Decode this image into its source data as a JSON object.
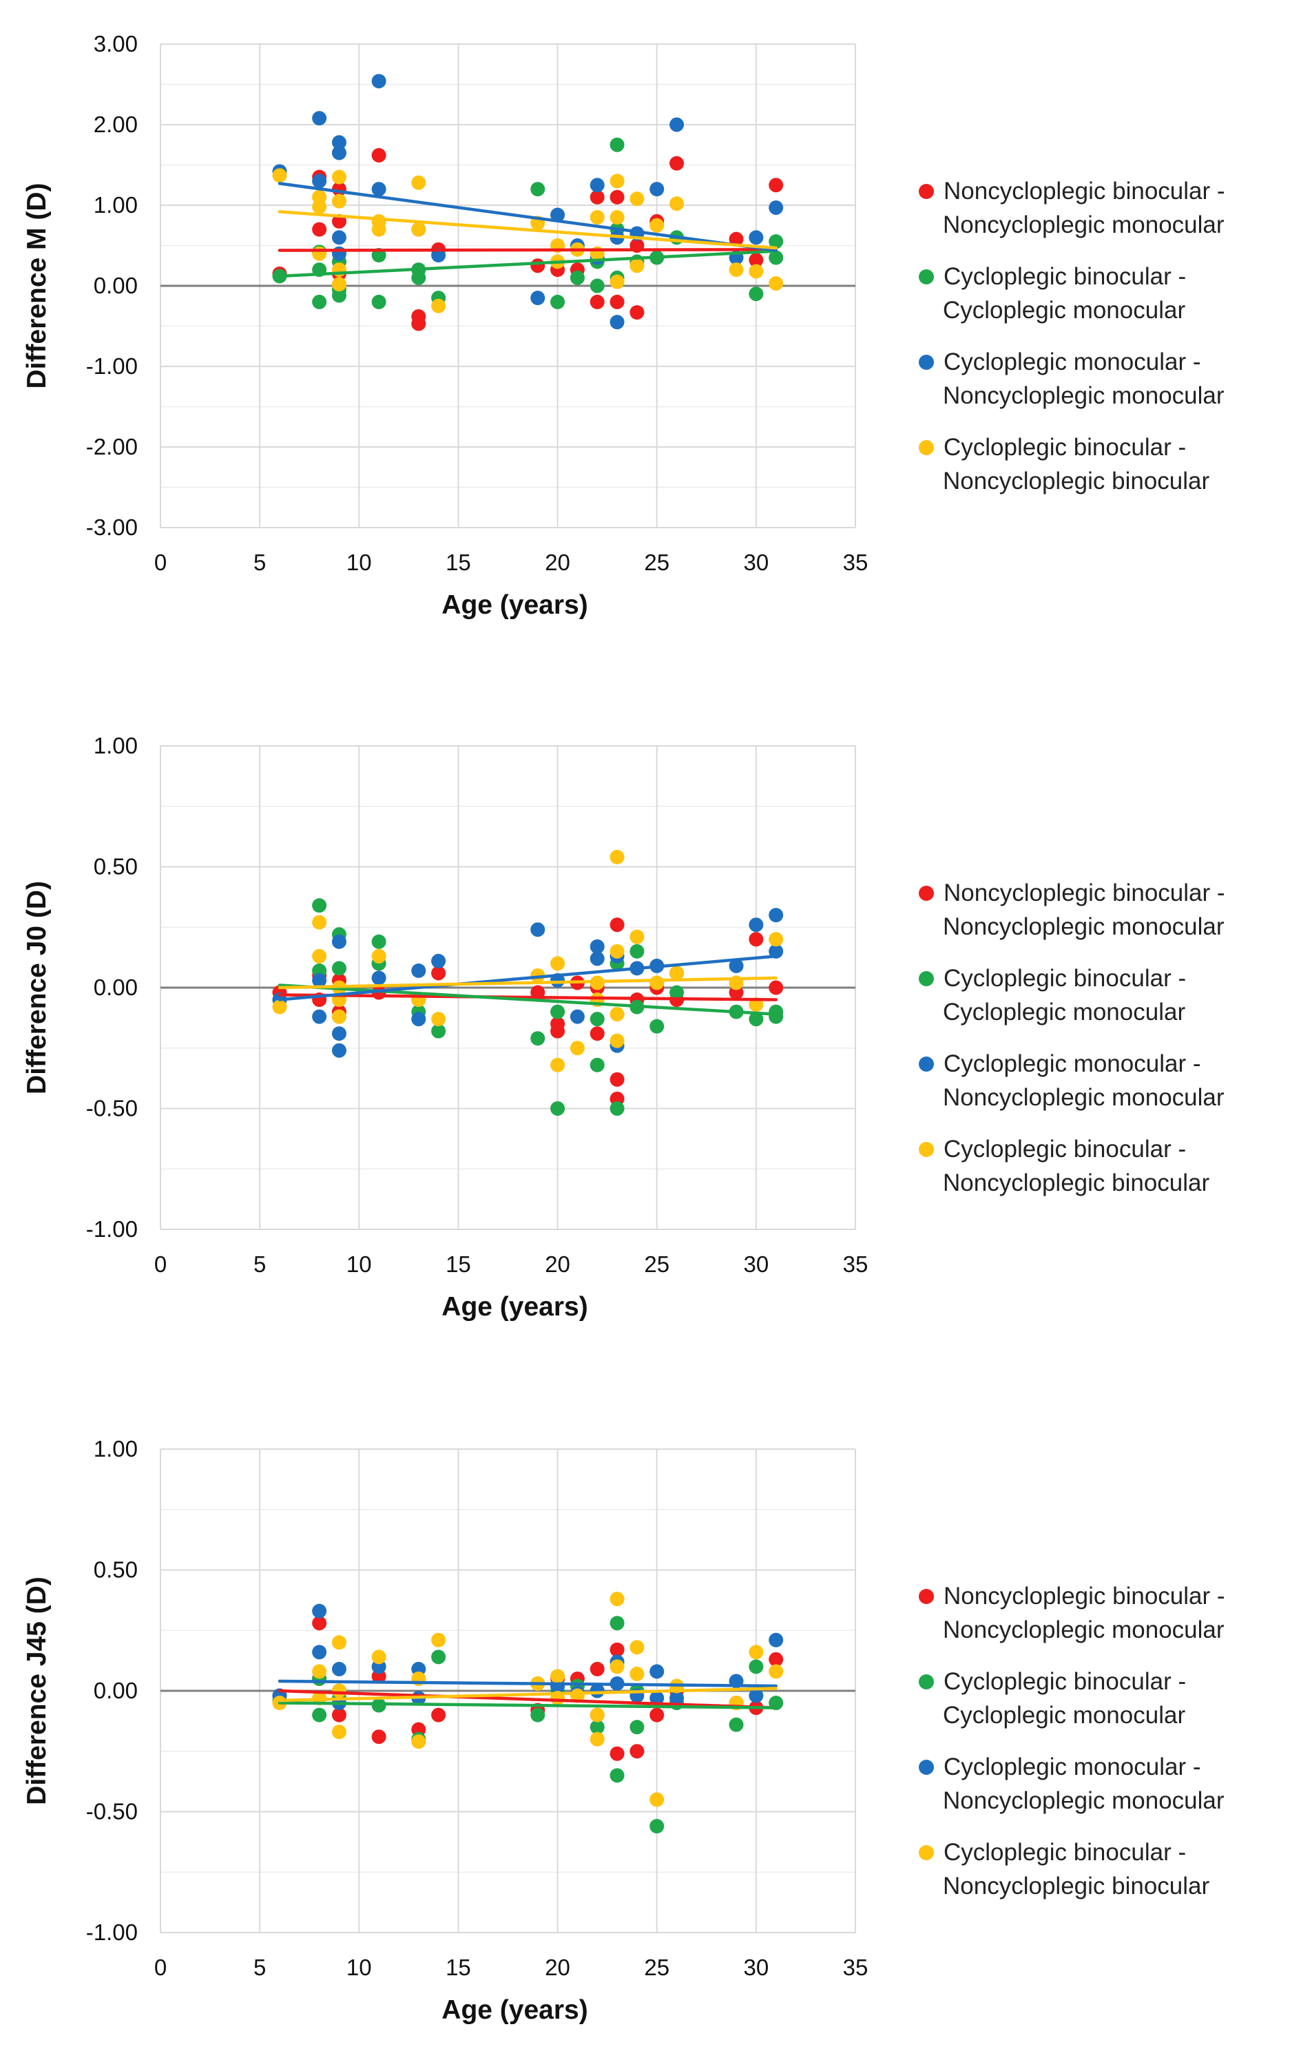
{
  "colors": {
    "series": [
      "#ee1c1c",
      "#1ea84a",
      "#1f6fc0",
      "#ffc20e"
    ],
    "grid": "#d9d9d9",
    "zero_line": "#7f7f7f"
  },
  "legend": [
    [
      "Noncycloplegic binocular -",
      "Noncycloplegic monocular"
    ],
    [
      "Cycloplegic binocular -",
      "Cycloplegic monocular"
    ],
    [
      "Cycloplegic monocular -",
      "Noncycloplegic monocular"
    ],
    [
      "Cycloplegic binocular -",
      "Noncycloplegic binocular"
    ]
  ],
  "chart_data": [
    {
      "type": "scatter",
      "title": "",
      "xlabel": "Age (years)",
      "ylabel": "Difference M (D)",
      "xlim": [
        0,
        35
      ],
      "ylim": [
        -3,
        3
      ],
      "xticks": [
        0,
        5,
        10,
        15,
        20,
        25,
        30,
        35
      ],
      "xtick_labels": [
        "0",
        "5",
        "10",
        "15",
        "20",
        "25",
        "30",
        "35"
      ],
      "yticks": [
        -3,
        -2,
        -1,
        0,
        1,
        2,
        3
      ],
      "ytick_labels": [
        "-3.00",
        "-2.00",
        "-1.00",
        "0.00",
        "1.00",
        "2.00",
        "3.00"
      ],
      "minor_y_step": 0.5,
      "series": [
        {
          "name": "Noncycloplegic binocular - Noncycloplegic monocular",
          "x": [
            6,
            8,
            8,
            9,
            9,
            9,
            9,
            11,
            13,
            13,
            14,
            19,
            20,
            21,
            22,
            22,
            23,
            23,
            24,
            24,
            25,
            26,
            29,
            30,
            31
          ],
          "y": [
            0.15,
            1.35,
            0.7,
            1.2,
            0.8,
            0.3,
            0.15,
            1.62,
            -0.38,
            -0.47,
            0.45,
            0.25,
            0.2,
            0.2,
            1.1,
            -0.2,
            1.1,
            -0.2,
            -0.33,
            0.5,
            0.8,
            1.52,
            0.58,
            0.32,
            1.25
          ],
          "trend": [
            0.44,
            0.45
          ]
        },
        {
          "name": "Cycloplegic binocular - Cycloplegic monocular",
          "x": [
            6,
            8,
            8,
            8,
            9,
            9,
            9,
            11,
            11,
            13,
            13,
            14,
            19,
            20,
            21,
            22,
            22,
            23,
            23,
            23,
            24,
            25,
            26,
            30,
            31,
            31
          ],
          "y": [
            0.12,
            -0.2,
            0.42,
            0.2,
            -0.05,
            -0.12,
            0.3,
            -0.2,
            0.38,
            0.1,
            0.2,
            -0.15,
            1.2,
            -0.2,
            0.1,
            0.0,
            0.3,
            1.75,
            0.7,
            0.1,
            0.3,
            0.35,
            0.6,
            -0.1,
            0.35,
            0.55
          ],
          "trend": [
            0.12,
            0.43
          ]
        },
        {
          "name": "Cycloplegic monocular - Noncycloplegic monocular",
          "x": [
            6,
            8,
            8,
            9,
            9,
            9,
            9,
            11,
            11,
            13,
            14,
            19,
            20,
            21,
            22,
            22,
            23,
            23,
            24,
            25,
            26,
            29,
            30,
            31
          ],
          "y": [
            1.42,
            2.08,
            1.3,
            1.78,
            1.65,
            0.6,
            0.4,
            2.54,
            1.2,
            0.7,
            0.38,
            -0.15,
            0.88,
            0.5,
            1.25,
            0.35,
            0.6,
            -0.45,
            0.65,
            1.2,
            2.0,
            0.35,
            0.6,
            0.97
          ],
          "trend": [
            1.27,
            0.44
          ]
        },
        {
          "name": "Cycloplegic binocular - Noncycloplegic binocular",
          "x": [
            6,
            8,
            8,
            8,
            9,
            9,
            9,
            9,
            11,
            11,
            13,
            13,
            14,
            19,
            20,
            20,
            21,
            22,
            22,
            23,
            23,
            23,
            24,
            24,
            25,
            26,
            29,
            30,
            31
          ],
          "y": [
            1.37,
            1.1,
            0.98,
            0.4,
            1.35,
            1.05,
            0.2,
            0.02,
            0.8,
            0.7,
            1.28,
            0.7,
            -0.25,
            0.78,
            0.5,
            0.3,
            0.45,
            0.85,
            0.4,
            1.3,
            0.85,
            0.05,
            1.08,
            0.25,
            0.75,
            1.02,
            0.2,
            0.18,
            0.03
          ],
          "trend": [
            0.92,
            0.47
          ]
        }
      ]
    },
    {
      "type": "scatter",
      "title": "",
      "xlabel": "Age (years)",
      "ylabel": "Difference J0 (D)",
      "xlim": [
        0,
        35
      ],
      "ylim": [
        -1,
        1
      ],
      "xticks": [
        0,
        5,
        10,
        15,
        20,
        25,
        30,
        35
      ],
      "xtick_labels": [
        "0",
        "5",
        "10",
        "15",
        "20",
        "25",
        "30",
        "35"
      ],
      "yticks": [
        -1,
        -0.5,
        0,
        0.5,
        1
      ],
      "ytick_labels": [
        "-1.00",
        "-0.50",
        "0.00",
        "0.50",
        "1.00"
      ],
      "minor_y_step": 0.25,
      "series": [
        {
          "name": "Noncycloplegic binocular - Noncycloplegic monocular",
          "x": [
            6,
            8,
            8,
            9,
            9,
            11,
            11,
            13,
            14,
            19,
            20,
            20,
            21,
            22,
            22,
            23,
            23,
            23,
            24,
            25,
            26,
            29,
            30,
            31
          ],
          "y": [
            -0.02,
            0.05,
            -0.05,
            0.03,
            -0.1,
            0.1,
            -0.02,
            -0.05,
            0.06,
            -0.02,
            -0.15,
            -0.18,
            0.02,
            0.0,
            -0.19,
            0.26,
            -0.38,
            -0.46,
            -0.05,
            0.0,
            -0.05,
            -0.02,
            0.2,
            0.0
          ],
          "trend": [
            -0.03,
            -0.05
          ]
        },
        {
          "name": "Cycloplegic binocular - Cycloplegic monocular",
          "x": [
            6,
            8,
            8,
            9,
            9,
            9,
            11,
            11,
            13,
            14,
            19,
            20,
            20,
            22,
            22,
            23,
            23,
            24,
            24,
            25,
            26,
            29,
            30,
            31,
            31
          ],
          "y": [
            -0.05,
            0.34,
            0.07,
            0.22,
            0.08,
            -0.12,
            0.19,
            0.1,
            -0.1,
            -0.18,
            -0.21,
            -0.5,
            -0.1,
            -0.13,
            -0.32,
            0.1,
            -0.5,
            0.15,
            -0.08,
            -0.16,
            -0.02,
            -0.1,
            -0.13,
            -0.1,
            -0.12
          ],
          "trend": [
            0.01,
            -0.11
          ]
        },
        {
          "name": "Cycloplegic monocular - Noncycloplegic monocular",
          "x": [
            6,
            8,
            8,
            9,
            9,
            9,
            11,
            13,
            13,
            14,
            19,
            20,
            21,
            22,
            22,
            23,
            23,
            24,
            25,
            26,
            29,
            30,
            31,
            31
          ],
          "y": [
            -0.05,
            -0.12,
            0.03,
            0.19,
            -0.19,
            -0.26,
            0.04,
            0.07,
            -0.13,
            0.11,
            0.24,
            0.03,
            -0.12,
            0.17,
            0.12,
            0.13,
            -0.24,
            0.08,
            0.09,
            0.06,
            0.09,
            0.26,
            0.3,
            0.15
          ],
          "trend": [
            -0.05,
            0.13
          ]
        },
        {
          "name": "Cycloplegic binocular - Noncycloplegic binocular",
          "x": [
            6,
            8,
            8,
            9,
            9,
            9,
            11,
            13,
            14,
            19,
            20,
            20,
            21,
            22,
            22,
            23,
            23,
            23,
            23,
            24,
            25,
            26,
            29,
            30,
            31
          ],
          "y": [
            -0.08,
            0.27,
            0.13,
            0.0,
            -0.05,
            -0.12,
            0.13,
            -0.05,
            -0.13,
            0.05,
            0.1,
            -0.32,
            -0.25,
            0.02,
            -0.05,
            0.54,
            0.15,
            -0.11,
            -0.22,
            0.21,
            0.02,
            0.06,
            0.02,
            -0.07,
            0.2
          ],
          "trend": [
            0.0,
            0.04
          ]
        }
      ]
    },
    {
      "type": "scatter",
      "title": "",
      "xlabel": "Age (years)",
      "ylabel": "Difference J45 (D)",
      "xlim": [
        0,
        35
      ],
      "ylim": [
        -1,
        1
      ],
      "xticks": [
        0,
        5,
        10,
        15,
        20,
        25,
        30,
        35
      ],
      "xtick_labels": [
        "0",
        "5",
        "10",
        "15",
        "20",
        "25",
        "30",
        "35"
      ],
      "yticks": [
        -1,
        -0.5,
        0,
        0.5,
        1
      ],
      "ytick_labels": [
        "-1.00",
        "-0.50",
        "0.00",
        "0.50",
        "1.00"
      ],
      "minor_y_step": 0.25,
      "series": [
        {
          "name": "Noncycloplegic binocular - Noncycloplegic monocular",
          "x": [
            6,
            8,
            8,
            9,
            9,
            11,
            11,
            13,
            14,
            19,
            20,
            21,
            22,
            22,
            23,
            23,
            24,
            25,
            26,
            29,
            30,
            31
          ],
          "y": [
            -0.02,
            0.28,
            0.05,
            0.0,
            -0.1,
            -0.19,
            0.06,
            -0.16,
            -0.1,
            -0.08,
            0.05,
            0.05,
            0.09,
            -0.1,
            0.17,
            -0.26,
            -0.25,
            -0.1,
            0.0,
            -0.05,
            -0.07,
            0.13
          ],
          "trend": [
            0.0,
            -0.07
          ]
        },
        {
          "name": "Cycloplegic binocular - Cycloplegic monocular",
          "x": [
            6,
            8,
            8,
            9,
            9,
            11,
            13,
            14,
            19,
            20,
            21,
            22,
            22,
            23,
            23,
            24,
            24,
            25,
            26,
            29,
            30,
            31
          ],
          "y": [
            -0.04,
            -0.1,
            0.05,
            -0.03,
            0.0,
            -0.06,
            -0.2,
            0.14,
            -0.1,
            0.0,
            0.02,
            -0.15,
            0.0,
            0.28,
            -0.35,
            0.0,
            -0.15,
            -0.56,
            -0.05,
            -0.14,
            0.1,
            -0.05
          ],
          "trend": [
            -0.05,
            -0.07
          ]
        },
        {
          "name": "Cycloplegic monocular - Noncycloplegic monocular",
          "x": [
            6,
            8,
            8,
            9,
            9,
            11,
            13,
            13,
            19,
            20,
            21,
            22,
            23,
            23,
            24,
            25,
            25,
            26,
            29,
            30,
            31
          ],
          "y": [
            -0.02,
            0.33,
            0.16,
            0.09,
            -0.05,
            0.1,
            0.09,
            -0.03,
            0.03,
            0.02,
            -0.01,
            0.0,
            0.12,
            0.03,
            -0.02,
            0.08,
            -0.03,
            -0.03,
            0.04,
            -0.02,
            0.21
          ],
          "trend": [
            0.04,
            0.02
          ]
        },
        {
          "name": "Cycloplegic binocular - Noncycloplegic binocular",
          "x": [
            6,
            8,
            8,
            9,
            9,
            9,
            11,
            13,
            13,
            14,
            19,
            20,
            20,
            21,
            22,
            22,
            23,
            23,
            24,
            24,
            25,
            26,
            29,
            30,
            31
          ],
          "y": [
            -0.05,
            0.08,
            -0.03,
            0.2,
            0.0,
            -0.17,
            0.14,
            0.05,
            -0.21,
            0.21,
            0.03,
            0.06,
            -0.03,
            -0.02,
            -0.1,
            -0.2,
            0.38,
            0.1,
            0.18,
            0.07,
            -0.45,
            0.02,
            -0.05,
            0.16,
            0.08
          ],
          "trend": [
            -0.04,
            0.01
          ]
        }
      ]
    }
  ]
}
